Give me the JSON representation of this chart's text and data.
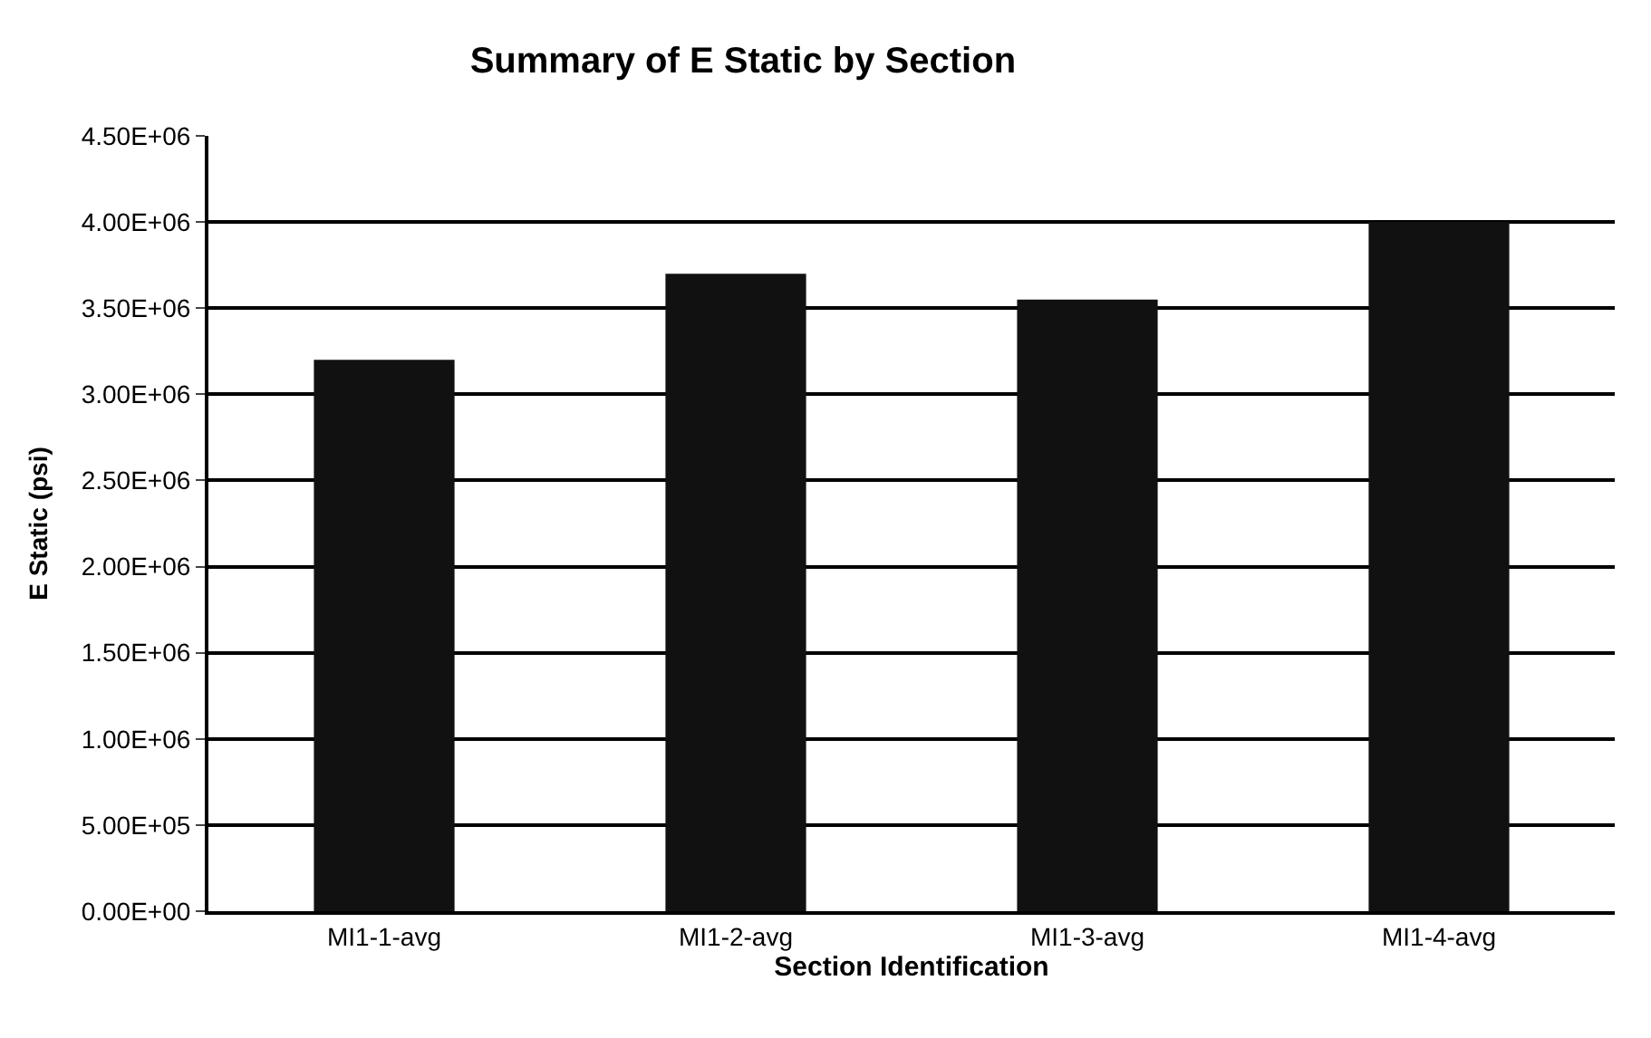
{
  "chart_data": {
    "type": "bar",
    "title": "Summary of E Static by Section",
    "xlabel": "Section Identification",
    "ylabel": "E Static (psi)",
    "categories": [
      "MI1-1-avg",
      "MI1-2-avg",
      "MI1-3-avg",
      "MI1-4-avg"
    ],
    "values": [
      3200000,
      3700000,
      3550000,
      4000000
    ],
    "color": "#111111",
    "ylim": [
      0,
      4500000
    ],
    "yticks": [
      {
        "value": 0,
        "label": "0.00E+00"
      },
      {
        "value": 500000,
        "label": "5.00E+05"
      },
      {
        "value": 1000000,
        "label": "1.00E+06"
      },
      {
        "value": 1500000,
        "label": "1.50E+06"
      },
      {
        "value": 2000000,
        "label": "2.00E+06"
      },
      {
        "value": 2500000,
        "label": "2.50E+06"
      },
      {
        "value": 3000000,
        "label": "3.00E+06"
      },
      {
        "value": 3500000,
        "label": "3.50E+06"
      },
      {
        "value": 4000000,
        "label": "4.00E+06"
      },
      {
        "value": 4500000,
        "label": "4.50E+06"
      }
    ],
    "grid": "y"
  }
}
